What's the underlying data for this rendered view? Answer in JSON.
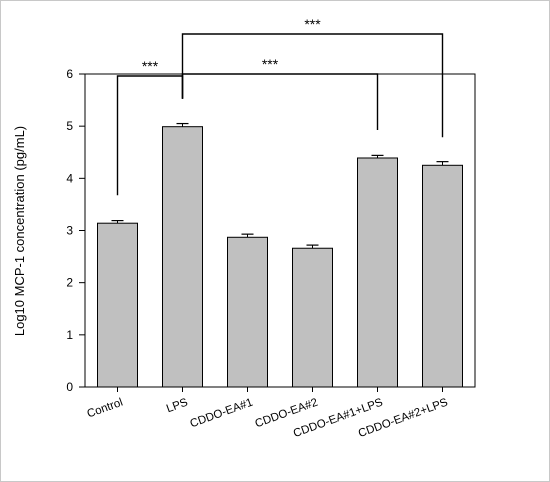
{
  "chart_data": {
    "type": "bar",
    "categories": [
      "Control",
      "LPS",
      "CDDO-EA#1",
      "CDDO-EA#2",
      "CDDO-EA#1+LPS",
      "CDDO-EA#2+LPS"
    ],
    "values": [
      3.14,
      4.99,
      2.87,
      2.66,
      4.39,
      4.25
    ],
    "errors": [
      0.05,
      0.06,
      0.06,
      0.06,
      0.05,
      0.07
    ],
    "ylabel": "Log10 MCP-1 concentration (pg/mL)",
    "xlabel": "",
    "ylim": [
      0,
      6
    ],
    "yticks": [
      "0",
      "1",
      "2",
      "3",
      "4",
      "5",
      "6"
    ],
    "bar_color": "#c0c0c0",
    "significance": [
      {
        "from": "Control",
        "to": "LPS",
        "label": "***"
      },
      {
        "from": "LPS",
        "to": "CDDO-EA#1+LPS",
        "label": "***"
      },
      {
        "from": "LPS",
        "to": "CDDO-EA#2+LPS",
        "label": "***"
      }
    ]
  }
}
